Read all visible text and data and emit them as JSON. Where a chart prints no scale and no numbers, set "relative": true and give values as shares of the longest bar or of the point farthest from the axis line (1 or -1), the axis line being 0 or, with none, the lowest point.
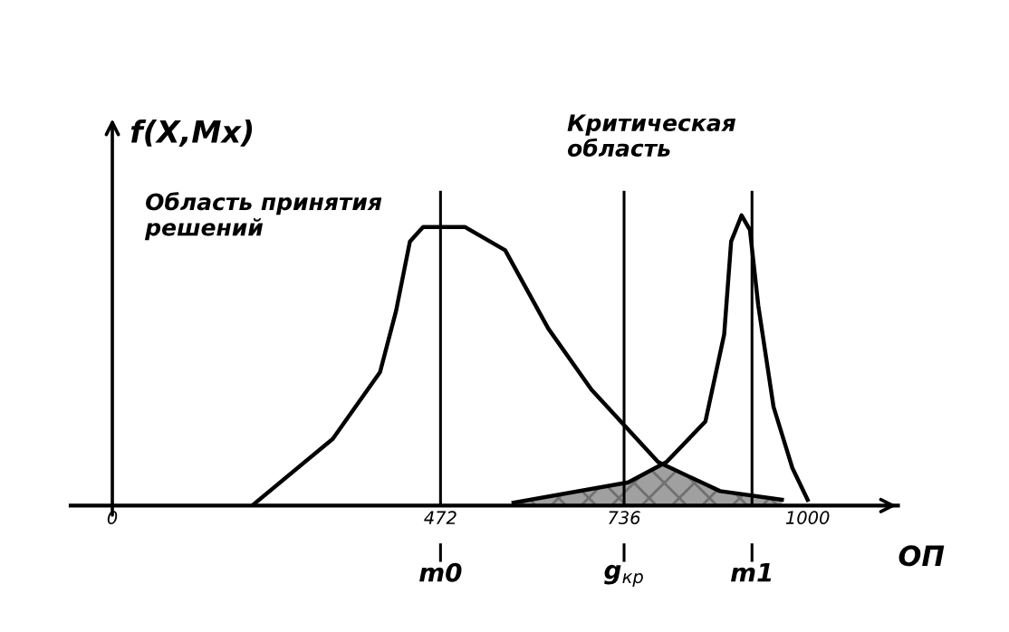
{
  "chart_data": {
    "type": "line",
    "relative": true,
    "ylabel": "f(X,Mx)",
    "xlabel": "ОП",
    "xlim": [
      -60,
      1130
    ],
    "xticks": [
      0,
      472,
      736,
      1000
    ],
    "grid": false,
    "series": [
      {
        "color": "#000000",
        "x": [
          201,
          317,
          385,
          408,
          428,
          447,
          507,
          565,
          627,
          689,
          785,
          874,
          963
        ],
        "values": [
          0,
          0.23,
          0.46,
          0.67,
          0.91,
          0.96,
          0.96,
          0.88,
          0.61,
          0.4,
          0.15,
          0.05,
          0.02
        ]
      },
      {
        "color": "#000000",
        "x": [
          577,
          742,
          797,
          853,
          880,
          890,
          905,
          917,
          929,
          951,
          978,
          1000
        ],
        "values": [
          0.01,
          0.08,
          0.15,
          0.29,
          0.59,
          0.91,
          1,
          0.95,
          0.69,
          0.34,
          0.13,
          0.02
        ]
      },
      {
        "type": "area",
        "color": "#a0a0a0",
        "x": [
          577,
          742,
          791,
          874,
          963
        ],
        "values": [
          0.01,
          0.08,
          0.14,
          0.05,
          0.02
        ]
      }
    ],
    "ref_lines": [
      {
        "axis": "x",
        "value": 472,
        "label": "m0"
      },
      {
        "axis": "x",
        "value": 736,
        "label": "g$_{кр}$"
      },
      {
        "axis": "x",
        "value": 920,
        "label": "m1"
      }
    ],
    "annotations": [
      "Область принятия\nрешений",
      "Критическая\nобласть"
    ]
  }
}
